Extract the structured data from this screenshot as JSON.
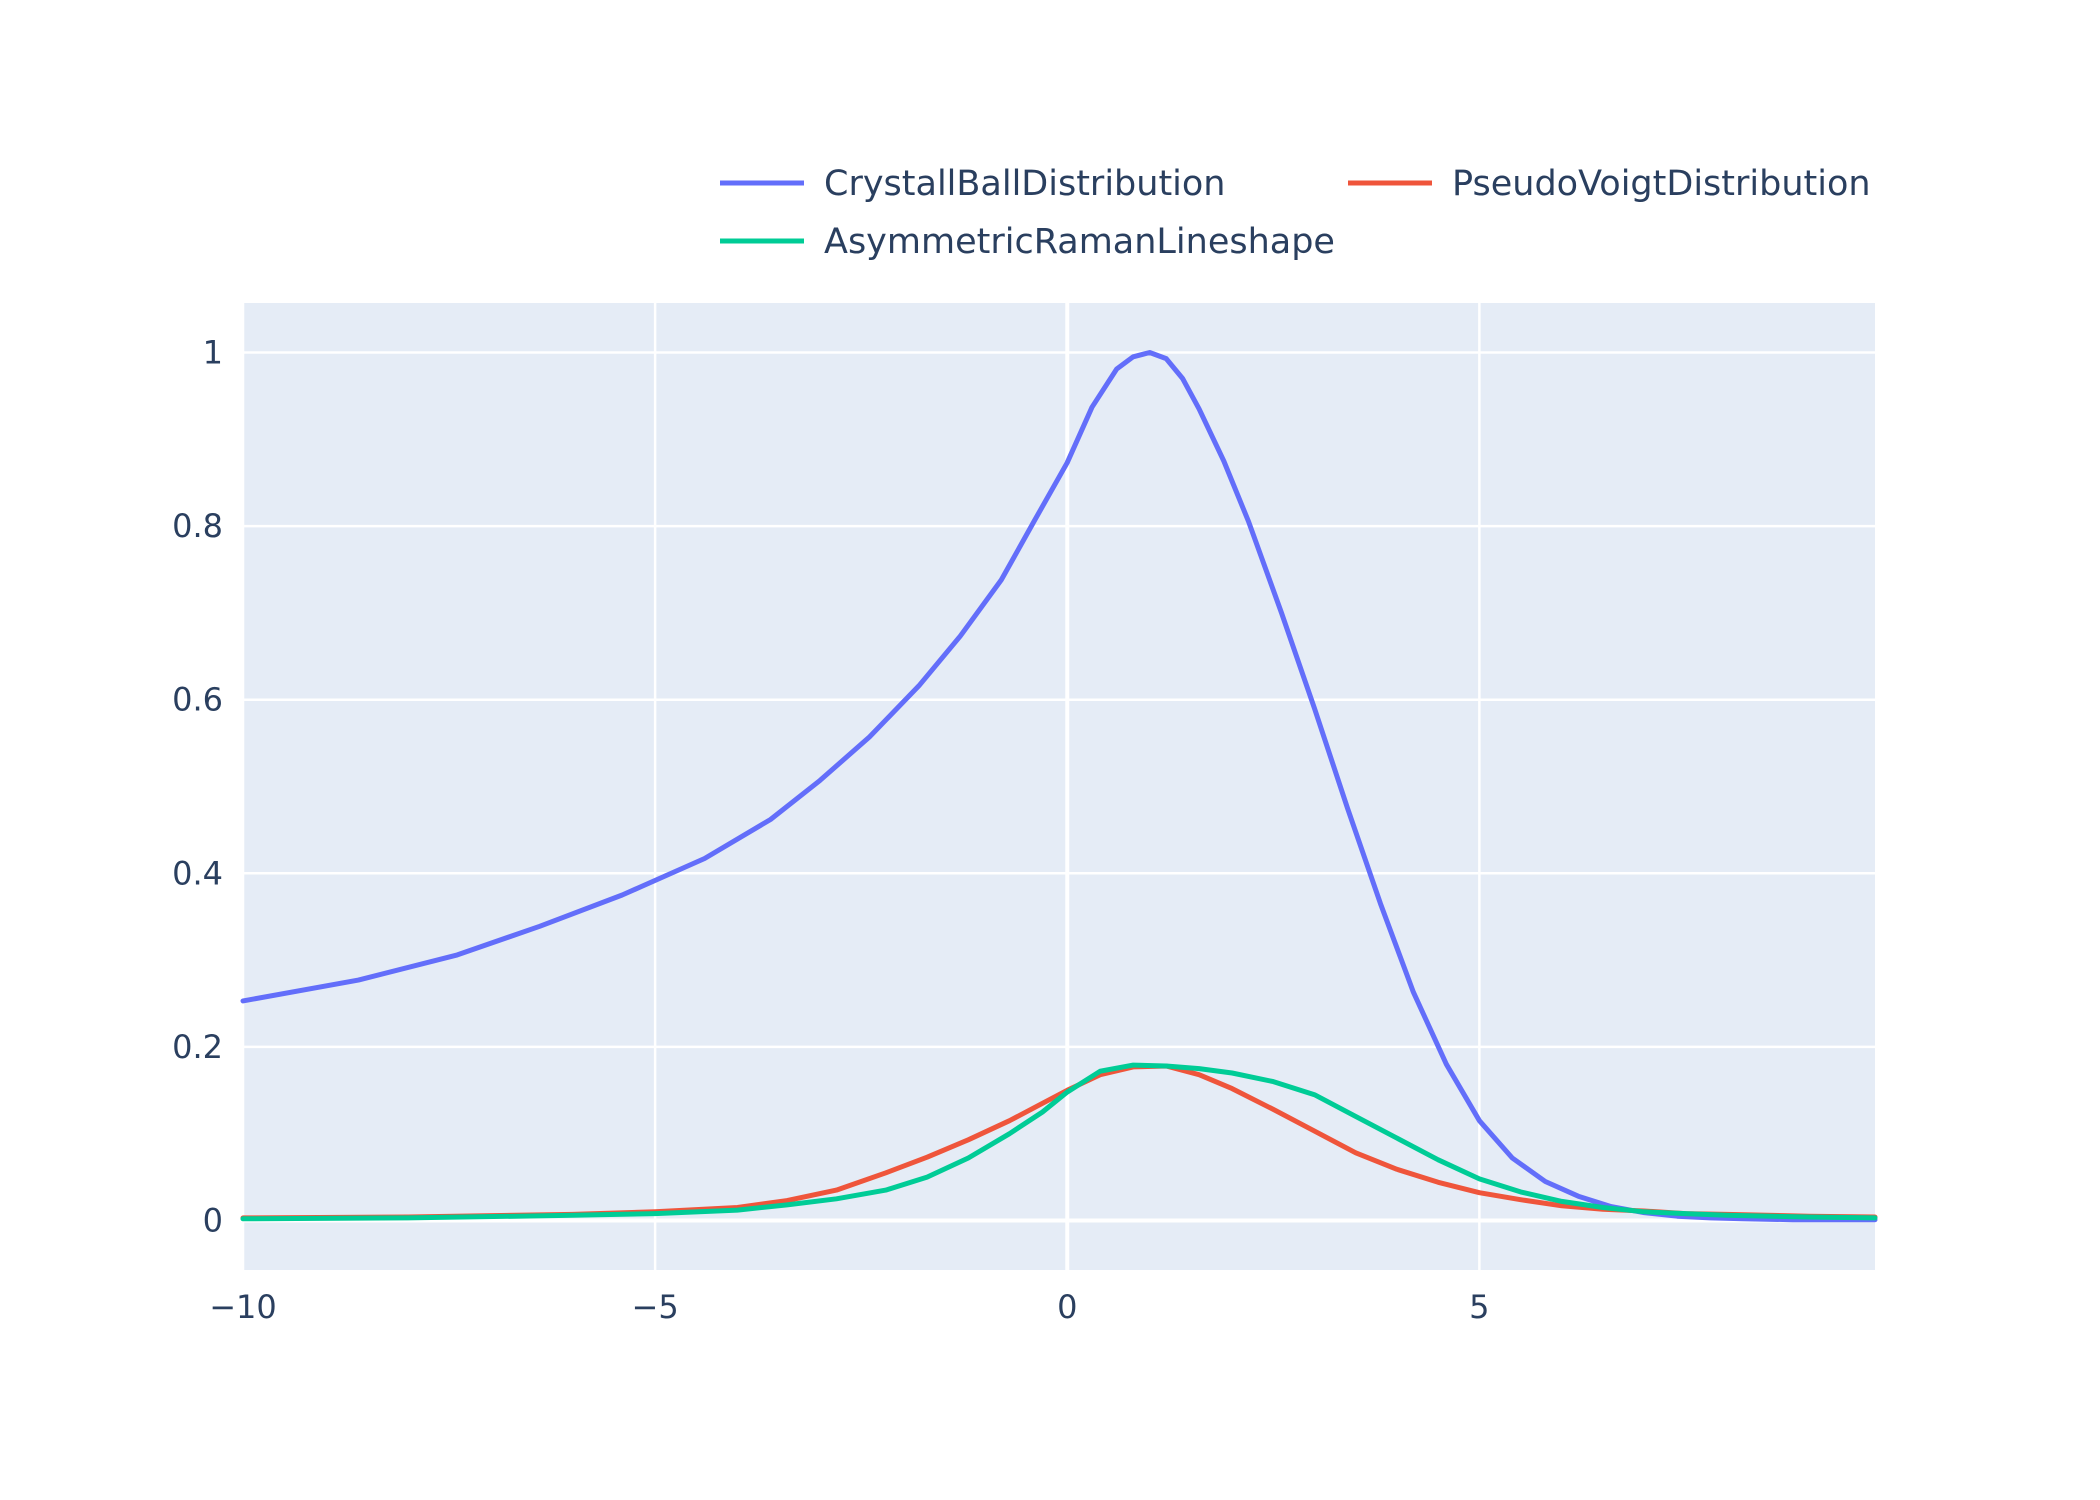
{
  "chart_data": {
    "type": "line",
    "title": "",
    "xlabel": "",
    "ylabel": "",
    "xlim": [
      -10,
      9.8
    ],
    "ylim": [
      -0.057,
      1.057
    ],
    "x_ticks": [
      -10,
      -5,
      0,
      5
    ],
    "x_tick_labels": [
      "−10",
      "−5",
      "0",
      "5"
    ],
    "y_ticks": [
      0,
      0.2,
      0.4,
      0.6,
      0.8,
      1
    ],
    "y_tick_labels": [
      "0",
      "0.2",
      "0.4",
      "0.6",
      "0.8",
      "1"
    ],
    "grid": true,
    "legend_placement": "top-right",
    "plot_background": "#e5ecf6",
    "series": [
      {
        "name": "CrystallBallDistribution",
        "color": "#636efa",
        "x": [
          -10,
          -8.6,
          -7.4,
          -6.4,
          -5.4,
          -4.4,
          -3.6,
          -3,
          -2.4,
          -1.8,
          -1.3,
          -0.8,
          -0.4,
          0,
          0.3,
          0.6,
          0.8,
          1,
          1.2,
          1.4,
          1.6,
          1.9,
          2.2,
          2.6,
          3,
          3.4,
          3.8,
          4.2,
          4.6,
          5,
          5.4,
          5.8,
          6.2,
          6.6,
          7,
          7.4,
          7.8,
          8.2,
          8.8,
          9.8
        ],
        "y": [
          0.253,
          0.277,
          0.306,
          0.339,
          0.375,
          0.417,
          0.462,
          0.507,
          0.557,
          0.616,
          0.673,
          0.738,
          0.806,
          0.873,
          0.937,
          0.981,
          0.995,
          1.0,
          0.993,
          0.97,
          0.935,
          0.875,
          0.805,
          0.7,
          0.59,
          0.475,
          0.365,
          0.263,
          0.18,
          0.115,
          0.072,
          0.045,
          0.028,
          0.016,
          0.009,
          0.005,
          0.003,
          0.002,
          0.001,
          0.001
        ]
      },
      {
        "name": "PseudoVoigtDistribution",
        "color": "#ef553b",
        "x": [
          -10,
          -8,
          -6,
          -5,
          -4,
          -3.4,
          -2.8,
          -2.2,
          -1.7,
          -1.2,
          -0.7,
          -0.3,
          0,
          0.4,
          0.8,
          1.2,
          1.6,
          2,
          2.5,
          3,
          3.5,
          4,
          4.5,
          5,
          5.5,
          6,
          6.5,
          7,
          7.5,
          8,
          9,
          9.8
        ],
        "y": [
          0.003,
          0.004,
          0.007,
          0.01,
          0.015,
          0.023,
          0.035,
          0.055,
          0.073,
          0.093,
          0.115,
          0.135,
          0.15,
          0.168,
          0.177,
          0.178,
          0.168,
          0.152,
          0.128,
          0.103,
          0.078,
          0.059,
          0.044,
          0.032,
          0.024,
          0.017,
          0.013,
          0.011,
          0.008,
          0.007,
          0.005,
          0.004
        ]
      },
      {
        "name": "AsymmetricRamanLineshape",
        "color": "#00cc96",
        "x": [
          -10,
          -8,
          -6,
          -5,
          -4,
          -3.4,
          -2.8,
          -2.2,
          -1.7,
          -1.2,
          -0.7,
          -0.3,
          0,
          0.4,
          0.8,
          1.2,
          1.6,
          2,
          2.5,
          3,
          3.5,
          4,
          4.5,
          5,
          5.5,
          6,
          6.5,
          7,
          7.5,
          8,
          9,
          9.8
        ],
        "y": [
          0.002,
          0.003,
          0.006,
          0.008,
          0.012,
          0.018,
          0.025,
          0.035,
          0.05,
          0.072,
          0.1,
          0.125,
          0.148,
          0.172,
          0.179,
          0.178,
          0.175,
          0.17,
          0.16,
          0.145,
          0.12,
          0.095,
          0.07,
          0.048,
          0.033,
          0.022,
          0.015,
          0.01,
          0.008,
          0.006,
          0.004,
          0.003
        ]
      }
    ]
  }
}
